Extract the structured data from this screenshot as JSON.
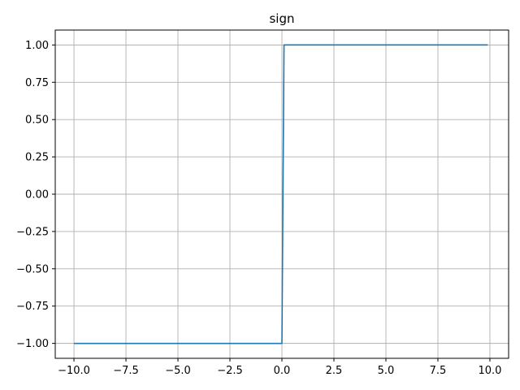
{
  "chart_data": {
    "type": "line",
    "title": "sign",
    "xlabel": "",
    "ylabel": "",
    "xlim": [
      -10.9,
      10.9
    ],
    "ylim": [
      -1.1,
      1.1
    ],
    "grid": true,
    "x_ticks": [
      -10.0,
      -7.5,
      -5.0,
      -2.5,
      0.0,
      2.5,
      5.0,
      7.5,
      10.0
    ],
    "x_tick_labels": [
      "−10.0",
      "−7.5",
      "−5.0",
      "−2.5",
      "0.0",
      "2.5",
      "5.0",
      "7.5",
      "10.0"
    ],
    "y_ticks": [
      -1.0,
      -0.75,
      -0.5,
      -0.25,
      0.0,
      0.25,
      0.5,
      0.75,
      1.0
    ],
    "y_tick_labels": [
      "−1.00",
      "−0.75",
      "−0.50",
      "−0.25",
      "0.00",
      "0.25",
      "0.50",
      "0.75",
      "1.00"
    ],
    "series": [
      {
        "color": "#1f77b4",
        "x": [
          -10.0,
          0.0,
          0.1,
          9.9
        ],
        "y": [
          -1.0,
          -1.0,
          1.0,
          1.0
        ]
      }
    ]
  }
}
